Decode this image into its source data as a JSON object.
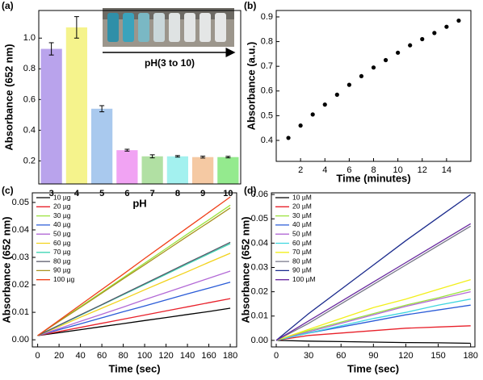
{
  "chart_data": [
    {
      "type": "bar",
      "panel_label": "(a)",
      "ylabel": "Absorbance (652 nm)",
      "xlabel": "pH",
      "categories": [
        "3",
        "4",
        "5",
        "6",
        "7",
        "8",
        "9",
        "10"
      ],
      "values": [
        0.93,
        1.07,
        0.54,
        0.27,
        0.23,
        0.23,
        0.225,
        0.225
      ],
      "errors": [
        0.04,
        0.07,
        0.02,
        0.006,
        0.01,
        0.005,
        0.006,
        0.005
      ],
      "colors": [
        "#b9a3ec",
        "#f5f38c",
        "#a9c9ee",
        "#f1a3f3",
        "#b1e0a3",
        "#a3f1ef",
        "#f5c9a3",
        "#94ea8e"
      ],
      "ylim": [
        0.05,
        1.18
      ],
      "yticks": [
        0.2,
        0.4,
        0.6,
        0.8,
        {
          "value": 1,
          "label": "1.0"
        }
      ],
      "inset_label": "pH(3 to 10)"
    },
    {
      "type": "scatter",
      "panel_label": "(b)",
      "ylabel": "Absorbance (a.u.)",
      "xlabel": "Time (minutes)",
      "x": [
        1,
        2,
        3,
        4,
        5,
        6,
        7,
        8,
        9,
        10,
        11,
        12,
        13,
        14,
        15
      ],
      "values": [
        0.41,
        0.46,
        0.505,
        0.545,
        0.585,
        0.625,
        0.66,
        0.695,
        0.725,
        0.755,
        0.785,
        0.81,
        0.835,
        0.86,
        0.885
      ],
      "color": "#000000",
      "xlim": [
        0,
        16
      ],
      "xticks": [
        2,
        4,
        6,
        8,
        10,
        12,
        14
      ],
      "ylim": [
        0.315,
        0.926
      ],
      "yticks": [
        0.4,
        0.5,
        0.6,
        0.7,
        0.8,
        0.9
      ]
    },
    {
      "type": "line",
      "panel_label": "(c)",
      "ylabel": "Absorbance (652 nm)",
      "xlabel": "Time (sec)",
      "x": [
        0,
        20,
        40,
        60,
        80,
        100,
        120,
        140,
        160,
        180
      ],
      "series": [
        {
          "name": "10 µg",
          "color": "#000000",
          "values": [
            0.0015,
            0.0026,
            0.0037,
            0.0048,
            0.0059,
            0.007,
            0.0081,
            0.0092,
            0.0103,
            0.0115
          ]
        },
        {
          "name": "20 µg",
          "color": "#e8202a",
          "values": [
            0.0015,
            0.003,
            0.0045,
            0.006,
            0.0075,
            0.009,
            0.0105,
            0.012,
            0.0135,
            0.015
          ]
        },
        {
          "name": "30 µg",
          "color": "#9be33c",
          "values": [
            0.0015,
            0.0068,
            0.0121,
            0.0173,
            0.0226,
            0.0279,
            0.0332,
            0.0385,
            0.0437,
            0.049
          ]
        },
        {
          "name": "40 µg",
          "color": "#2a5bd7",
          "values": [
            0.0015,
            0.0037,
            0.0058,
            0.008,
            0.0102,
            0.0123,
            0.0145,
            0.0167,
            0.0188,
            0.021
          ]
        },
        {
          "name": "50 µg",
          "color": "#b36ad6",
          "values": [
            0.0015,
            0.0041,
            0.0067,
            0.0093,
            0.0119,
            0.0146,
            0.0172,
            0.0198,
            0.0224,
            0.025
          ]
        },
        {
          "name": "60 µg",
          "color": "#f2d21b",
          "values": [
            0.0015,
            0.0048,
            0.0082,
            0.0115,
            0.0148,
            0.0182,
            0.0215,
            0.0248,
            0.0282,
            0.0315
          ]
        },
        {
          "name": "70 µg",
          "color": "#3fd6b4",
          "values": [
            0.0015,
            0.0052,
            0.0089,
            0.0127,
            0.0164,
            0.0201,
            0.0238,
            0.0276,
            0.0313,
            0.035
          ]
        },
        {
          "name": "80 µg",
          "color": "#555566",
          "values": [
            0.0015,
            0.0053,
            0.0091,
            0.0128,
            0.0166,
            0.0204,
            0.0242,
            0.028,
            0.0317,
            0.0355
          ]
        },
        {
          "name": "90 µg",
          "color": "#a89420",
          "values": [
            0.0015,
            0.0067,
            0.0118,
            0.017,
            0.0222,
            0.0273,
            0.0325,
            0.0377,
            0.0428,
            0.048
          ]
        },
        {
          "name": "100 µg",
          "color": "#f0401a",
          "values": [
            0.0015,
            0.0071,
            0.0127,
            0.0183,
            0.0239,
            0.0296,
            0.0352,
            0.0408,
            0.0464,
            0.052
          ]
        }
      ],
      "xlim": [
        -5,
        186
      ],
      "xticks": [
        0,
        20,
        40,
        60,
        80,
        100,
        120,
        140,
        160,
        180
      ],
      "ylim": [
        -0.0026,
        0.0535
      ],
      "yticks": [
        {
          "value": 0,
          "label": "0.00"
        },
        {
          "value": 0.01,
          "label": "0.01"
        },
        {
          "value": 0.02,
          "label": "0.02"
        },
        {
          "value": 0.03,
          "label": "0.03"
        },
        {
          "value": 0.04,
          "label": "0.04"
        },
        {
          "value": 0.05,
          "label": "0.05"
        }
      ]
    },
    {
      "type": "line",
      "panel_label": "(d)",
      "ylabel": "Absorbance (652 nm)",
      "xlabel": "Time (sec)",
      "x": [
        0,
        30,
        60,
        90,
        120,
        150,
        180
      ],
      "series": [
        {
          "name": "10 µM",
          "color": "#000000",
          "values": [
            0,
            -0.0003,
            -0.0005,
            -0.0007,
            -0.0009,
            -0.001,
            -0.0012
          ]
        },
        {
          "name": "20 µM",
          "color": "#e8202a",
          "values": [
            0,
            0.002,
            0.003,
            0.004,
            0.005,
            0.0055,
            0.006
          ]
        },
        {
          "name": "30 µM",
          "color": "#9be33c",
          "values": [
            0,
            0.004,
            0.0075,
            0.011,
            0.0145,
            0.0175,
            0.021
          ]
        },
        {
          "name": "40 µM",
          "color": "#2a5bd7",
          "values": [
            0,
            0.003,
            0.0055,
            0.008,
            0.0105,
            0.0125,
            0.0145
          ]
        },
        {
          "name": "50 µM",
          "color": "#b36ad6",
          "values": [
            0,
            0.0035,
            0.007,
            0.0105,
            0.014,
            0.017,
            0.02
          ]
        },
        {
          "name": "60 µM",
          "color": "#3fd6e0",
          "values": [
            0,
            0.003,
            0.006,
            0.009,
            0.0115,
            0.0145,
            0.017
          ]
        },
        {
          "name": "70 µM",
          "color": "#f2ef1b",
          "values": [
            0,
            0.0045,
            0.009,
            0.0135,
            0.017,
            0.021,
            0.025
          ]
        },
        {
          "name": "80 µM",
          "color": "#777788",
          "values": [
            0,
            0.007,
            0.015,
            0.023,
            0.031,
            0.039,
            0.047
          ]
        },
        {
          "name": "90 µM",
          "color": "#1a2a8c",
          "values": [
            0,
            0.011,
            0.021,
            0.031,
            0.041,
            0.0505,
            0.06
          ]
        },
        {
          "name": "100 µM",
          "color": "#6a2aa0",
          "values": [
            0,
            0.008,
            0.016,
            0.024,
            0.032,
            0.04,
            0.048
          ]
        }
      ],
      "xlim": [
        -4.5,
        184
      ],
      "xticks": [
        0,
        30,
        60,
        90,
        120,
        150,
        180
      ],
      "ylim": [
        -0.0027,
        0.0607
      ],
      "yticks": [
        {
          "value": 0,
          "label": "0.00"
        },
        {
          "value": 0.01,
          "label": "0.01"
        },
        {
          "value": 0.02,
          "label": "0.02"
        },
        {
          "value": 0.03,
          "label": "0.03"
        },
        {
          "value": 0.04,
          "label": "0.04"
        },
        {
          "value": 0.05,
          "label": "0.05"
        },
        {
          "value": 0.06,
          "label": "0.06"
        }
      ]
    }
  ]
}
